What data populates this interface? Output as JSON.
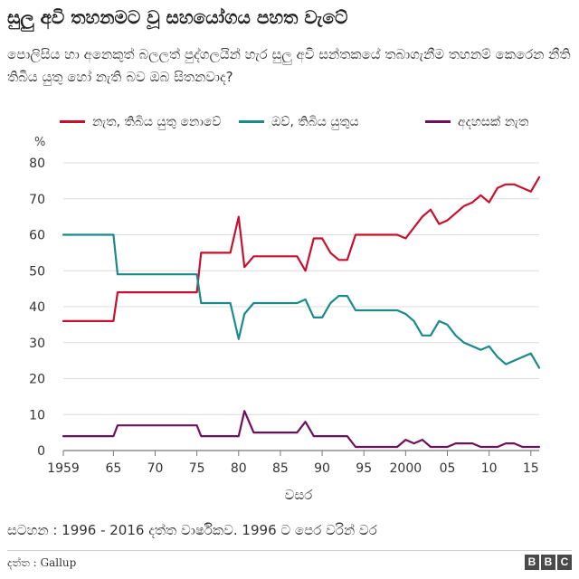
{
  "chart_data": {
    "type": "line",
    "title": "සුලු අවි තහනමට වූ සහයෝගය පහත වැටේ",
    "subtitle": "පොලිසිය හා අනෙකුත් බලලත් පුද්ගලයින් හැර සුලු අවි සන්තකයේ තබාගැනීම තහනම් කෙරෙන නීති තිබිය යුතු හෝ නැති බව ඔබ සිතනවාද?",
    "ylabel": "%",
    "xlabel": "වසර",
    "ylim": [
      0,
      80
    ],
    "xlim": [
      1959,
      2016
    ],
    "y_ticks": [
      "0",
      "10",
      "20",
      "30",
      "40",
      "50",
      "60",
      "70",
      "80"
    ],
    "x_ticks": [
      {
        "x": 1959,
        "label": "1959"
      },
      {
        "x": 1965,
        "label": "65"
      },
      {
        "x": 1970,
        "label": "70"
      },
      {
        "x": 1975,
        "label": "75"
      },
      {
        "x": 1980,
        "label": "80"
      },
      {
        "x": 1985,
        "label": "85"
      },
      {
        "x": 1990,
        "label": "90"
      },
      {
        "x": 1995,
        "label": "95"
      },
      {
        "x": 2000,
        "label": "2000"
      },
      {
        "x": 2005,
        "label": "05"
      },
      {
        "x": 2010,
        "label": "10"
      },
      {
        "x": 2015,
        "label": "15"
      }
    ],
    "grid": true,
    "legend_position": "top",
    "series": [
      {
        "name": "නැත, තිබිය යුතු නොවේ",
        "color": "#c8102e",
        "points": [
          [
            1959,
            36
          ],
          [
            1965,
            36
          ],
          [
            1965.5,
            44
          ],
          [
            1975,
            44
          ],
          [
            1975.5,
            55
          ],
          [
            1978,
            55
          ],
          [
            1979,
            55
          ],
          [
            1980,
            65
          ],
          [
            1980.7,
            51
          ],
          [
            1981.8,
            54
          ],
          [
            1987,
            54
          ],
          [
            1988,
            50
          ],
          [
            1989,
            59
          ],
          [
            1990,
            59
          ],
          [
            1991,
            55
          ],
          [
            1992,
            53
          ],
          [
            1993,
            53
          ],
          [
            1994,
            60
          ],
          [
            1999,
            60
          ],
          [
            2000,
            59
          ],
          [
            2001,
            62
          ],
          [
            2002,
            65
          ],
          [
            2003,
            67
          ],
          [
            2004,
            63
          ],
          [
            2005,
            64
          ],
          [
            2006,
            66
          ],
          [
            2007,
            68
          ],
          [
            2008,
            69
          ],
          [
            2009,
            71
          ],
          [
            2010,
            69
          ],
          [
            2011,
            73
          ],
          [
            2012,
            74
          ],
          [
            2013,
            74
          ],
          [
            2014,
            73
          ],
          [
            2015,
            72
          ],
          [
            2016,
            76
          ]
        ]
      },
      {
        "name": "ඔව්, තිබිය යුතුය",
        "color": "#1a8a8a",
        "points": [
          [
            1959,
            60
          ],
          [
            1965,
            60
          ],
          [
            1965.5,
            49
          ],
          [
            1975,
            49
          ],
          [
            1975.5,
            41
          ],
          [
            1978,
            41
          ],
          [
            1979,
            41
          ],
          [
            1980,
            31
          ],
          [
            1980.7,
            38
          ],
          [
            1981.8,
            41
          ],
          [
            1987,
            41
          ],
          [
            1988,
            42
          ],
          [
            1989,
            37
          ],
          [
            1990,
            37
          ],
          [
            1991,
            41
          ],
          [
            1992,
            43
          ],
          [
            1993,
            43
          ],
          [
            1994,
            39
          ],
          [
            1999,
            39
          ],
          [
            2000,
            38
          ],
          [
            2001,
            36
          ],
          [
            2002,
            32
          ],
          [
            2003,
            32
          ],
          [
            2004,
            36
          ],
          [
            2005,
            35
          ],
          [
            2006,
            32
          ],
          [
            2007,
            30
          ],
          [
            2008,
            29
          ],
          [
            2009,
            28
          ],
          [
            2010,
            29
          ],
          [
            2011,
            26
          ],
          [
            2012,
            24
          ],
          [
            2013,
            25
          ],
          [
            2014,
            26
          ],
          [
            2015,
            27
          ],
          [
            2016,
            23
          ]
        ]
      },
      {
        "name": "අදහසක් නැත",
        "color": "#6e1060",
        "points": [
          [
            1959,
            4
          ],
          [
            1965,
            4
          ],
          [
            1965.5,
            7
          ],
          [
            1975,
            7
          ],
          [
            1975.5,
            4
          ],
          [
            1978,
            4
          ],
          [
            1979,
            4
          ],
          [
            1980,
            4
          ],
          [
            1980.7,
            11
          ],
          [
            1981.8,
            5
          ],
          [
            1987,
            5
          ],
          [
            1988,
            8
          ],
          [
            1989,
            4
          ],
          [
            1990,
            4
          ],
          [
            1991,
            4
          ],
          [
            1992,
            4
          ],
          [
            1993,
            4
          ],
          [
            1994,
            1
          ],
          [
            1999,
            1
          ],
          [
            2000,
            3
          ],
          [
            2001,
            2
          ],
          [
            2002,
            3
          ],
          [
            2003,
            1
          ],
          [
            2004,
            1
          ],
          [
            2005,
            1
          ],
          [
            2006,
            2
          ],
          [
            2007,
            2
          ],
          [
            2008,
            2
          ],
          [
            2009,
            1
          ],
          [
            2010,
            1
          ],
          [
            2011,
            1
          ],
          [
            2012,
            2
          ],
          [
            2013,
            2
          ],
          [
            2014,
            1
          ],
          [
            2015,
            1
          ],
          [
            2016,
            1
          ]
        ]
      }
    ]
  },
  "footnote": "සටහන : 1996 - 2016 දත්ත වාර්ෂිකව. 1996 ට පෙර වරින් වර",
  "source": "දත්ත : Gallup",
  "logo": {
    "letters": [
      "B",
      "B",
      "C"
    ]
  }
}
